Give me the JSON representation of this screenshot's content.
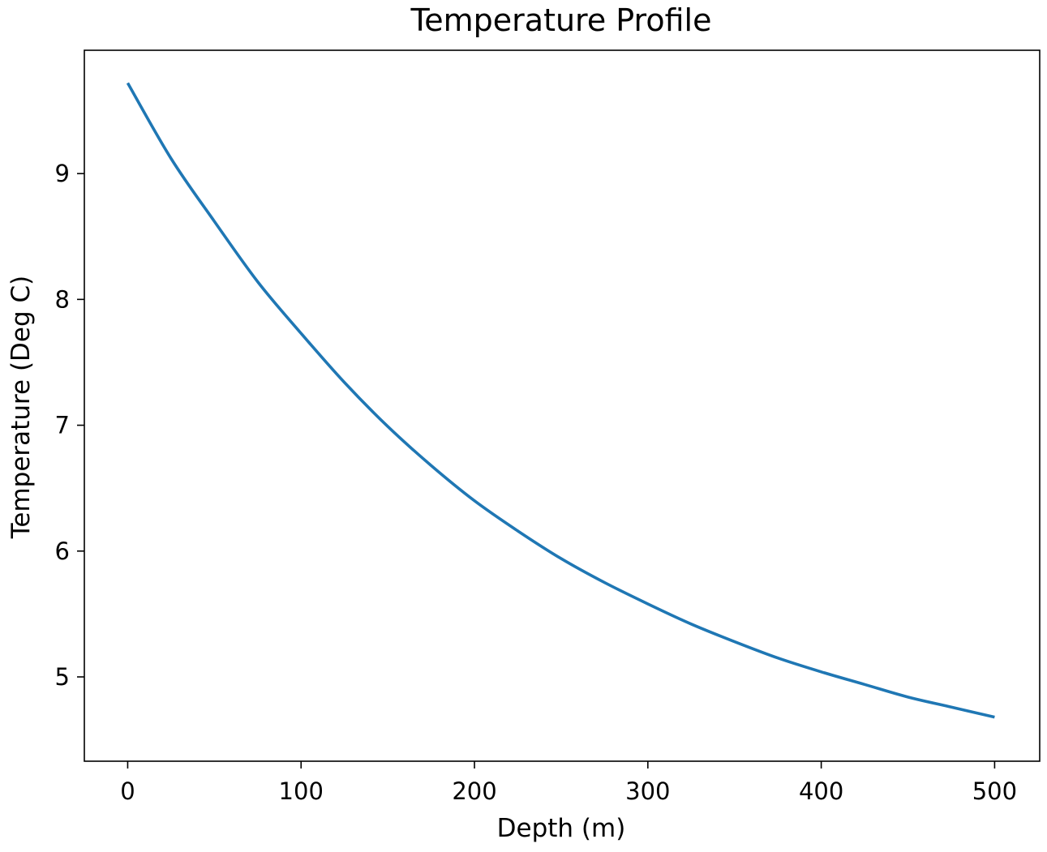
{
  "chart_data": {
    "type": "line",
    "title": "Temperature Profile",
    "xlabel": "Depth (m)",
    "ylabel": "Temperature (Deg C)",
    "xlim": [
      -25,
      526
    ],
    "ylim": [
      4.33,
      9.98
    ],
    "xticks": [
      0,
      100,
      200,
      300,
      400,
      500
    ],
    "xtick_labels": [
      "0",
      "100",
      "200",
      "300",
      "400",
      "500"
    ],
    "yticks": [
      5,
      6,
      7,
      8,
      9
    ],
    "ytick_labels": [
      "5",
      "6",
      "7",
      "8",
      "9"
    ],
    "grid": false,
    "legend": "none",
    "series": [
      {
        "color": "#1f77b4",
        "x": [
          0,
          25,
          50,
          75,
          100,
          125,
          150,
          175,
          200,
          225,
          250,
          275,
          300,
          325,
          350,
          375,
          400,
          425,
          450,
          475,
          500
        ],
        "y": [
          9.72,
          9.12,
          8.62,
          8.14,
          7.73,
          7.34,
          6.99,
          6.68,
          6.4,
          6.16,
          5.94,
          5.75,
          5.58,
          5.42,
          5.28,
          5.15,
          5.04,
          4.94,
          4.84,
          4.76,
          4.68
        ]
      }
    ]
  }
}
